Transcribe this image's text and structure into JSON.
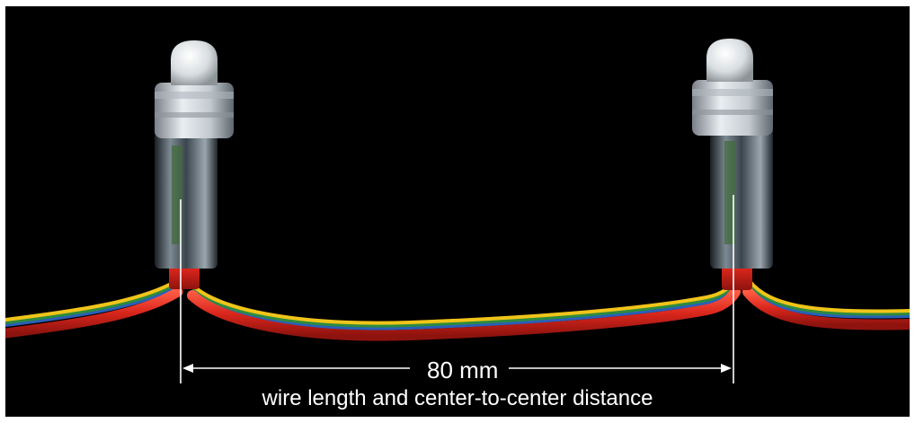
{
  "image": {
    "background_color": "#000000",
    "subject": "two LED pixel modules connected by a red multi-strand wire",
    "wire_colors": [
      "#d9261c",
      "#f0c419",
      "#2e8b3c",
      "#2a5fb8"
    ]
  },
  "dimension": {
    "value_label": "80 mm",
    "caption": "wire length and center-to-center distance",
    "line_color": "#ffffff"
  }
}
